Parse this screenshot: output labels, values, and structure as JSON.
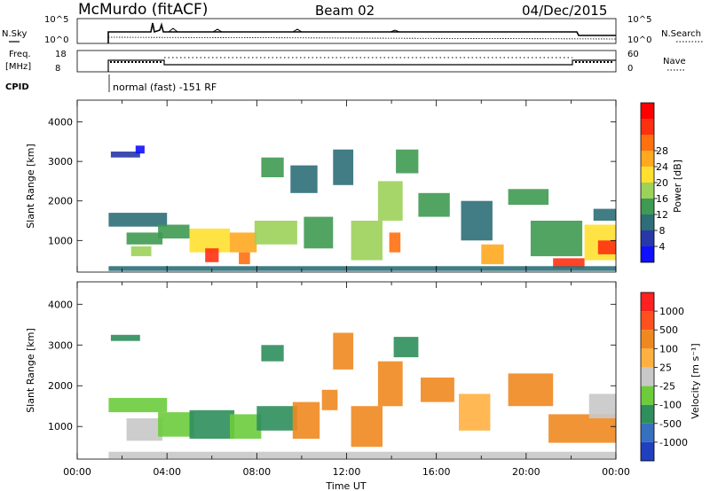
{
  "header": {
    "station": "McMurdo (fitACF)",
    "beam": "Beam 02",
    "date": "04/Dec/2015"
  },
  "panels": {
    "nsky": {
      "label": "N.Sky",
      "ticks": [
        "10^5",
        "10^0"
      ],
      "right_label": "N.Search",
      "right_ticks": [
        "10^5",
        "10^0"
      ]
    },
    "freq": {
      "label_top": "Freq.",
      "label_bottom": "[MHz]",
      "ticks": [
        "18",
        "8"
      ],
      "right_label": "Nave",
      "right_ticks": [
        "60",
        "0"
      ]
    },
    "cpid": {
      "label": "CPID",
      "text": "normal (fast) -151 RF"
    }
  },
  "chart_data": [
    {
      "type": "heatmap",
      "name": "power",
      "ylabel": "Slant Range [km]",
      "xlabel": "",
      "yticks": [
        "1000",
        "2000",
        "3000",
        "4000"
      ],
      "ylim": [
        200,
        4550
      ],
      "xlim": [
        0,
        24
      ],
      "colorbar": {
        "label": "Power [dB]",
        "ticks": [
          "4",
          "8",
          "12",
          "16",
          "20",
          "24",
          "28"
        ],
        "colors": [
          "#1010ff",
          "#2838a8",
          "#2e6e78",
          "#3f9a52",
          "#9cd25a",
          "#ffe030",
          "#ffa820",
          "#ff7010",
          "#ff3010",
          "#ff0000"
        ]
      },
      "cells": [
        [
          1.5,
          2.8,
          3100,
          3250,
          1
        ],
        [
          2.6,
          3.0,
          3200,
          3400,
          0
        ],
        [
          1.4,
          4.0,
          1350,
          1700,
          2
        ],
        [
          2.2,
          3.8,
          900,
          1200,
          3
        ],
        [
          2.4,
          3.3,
          600,
          850,
          4
        ],
        [
          3.6,
          5.0,
          1050,
          1400,
          3
        ],
        [
          5.0,
          6.8,
          700,
          1300,
          5
        ],
        [
          5.7,
          6.3,
          450,
          800,
          8
        ],
        [
          6.8,
          8.0,
          700,
          1200,
          6
        ],
        [
          7.2,
          7.7,
          400,
          700,
          7
        ],
        [
          7.9,
          9.8,
          900,
          1500,
          4
        ],
        [
          8.2,
          9.2,
          2600,
          3100,
          3
        ],
        [
          9.5,
          10.7,
          2200,
          2900,
          2
        ],
        [
          10.1,
          11.4,
          800,
          1600,
          3
        ],
        [
          11.4,
          12.3,
          2400,
          3300,
          2
        ],
        [
          12.2,
          13.6,
          500,
          1500,
          4
        ],
        [
          13.4,
          14.5,
          1500,
          2500,
          4
        ],
        [
          13.9,
          14.4,
          700,
          1200,
          7
        ],
        [
          14.2,
          15.2,
          2700,
          3300,
          3
        ],
        [
          15.2,
          16.6,
          1600,
          2200,
          3
        ],
        [
          17.1,
          18.5,
          1000,
          2000,
          2
        ],
        [
          18.0,
          19.0,
          400,
          900,
          6
        ],
        [
          19.2,
          21.0,
          1900,
          2300,
          3
        ],
        [
          20.2,
          22.5,
          600,
          1500,
          3
        ],
        [
          21.2,
          22.6,
          300,
          550,
          8
        ],
        [
          22.6,
          24.0,
          500,
          1400,
          5
        ],
        [
          23.2,
          24.0,
          650,
          1000,
          8
        ],
        [
          23.0,
          24.0,
          1500,
          1800,
          2
        ],
        [
          1.4,
          24.0,
          230,
          350,
          2
        ]
      ]
    },
    {
      "type": "heatmap",
      "name": "velocity",
      "ylabel": "Slant Range [km]",
      "xlabel": "Time UT",
      "yticks": [
        "1000",
        "2000",
        "3000",
        "4000"
      ],
      "xticks": [
        "00:00",
        "04:00",
        "08:00",
        "12:00",
        "16:00",
        "20:00",
        "00:00"
      ],
      "ylim": [
        200,
        4550
      ],
      "xlim": [
        0,
        24
      ],
      "colorbar": {
        "label": "Velocity [m s⁻¹]",
        "ticks": [
          "1000",
          "500",
          "100",
          "25",
          "-25",
          "-100",
          "-500",
          "-1000"
        ],
        "colors": [
          "#2040c0",
          "#3870c0",
          "#2e8e5c",
          "#6ccc3c",
          "#c8c8c8",
          "#ffb040",
          "#f08820",
          "#ff5020",
          "#ff2020"
        ]
      },
      "cells": [
        [
          1.5,
          2.8,
          3100,
          3250,
          2
        ],
        [
          1.4,
          4.0,
          1350,
          1700,
          3
        ],
        [
          2.2,
          3.8,
          650,
          1200,
          4
        ],
        [
          3.6,
          5.2,
          750,
          1350,
          3
        ],
        [
          5.0,
          7.0,
          700,
          1400,
          2
        ],
        [
          6.8,
          8.2,
          700,
          1300,
          3
        ],
        [
          8.0,
          9.8,
          900,
          1500,
          2
        ],
        [
          8.2,
          9.2,
          2600,
          3000,
          2
        ],
        [
          9.6,
          10.8,
          700,
          1600,
          6
        ],
        [
          10.9,
          11.6,
          1400,
          1900,
          6
        ],
        [
          11.4,
          12.3,
          2400,
          3300,
          6
        ],
        [
          12.2,
          13.6,
          500,
          1500,
          6
        ],
        [
          13.4,
          14.5,
          1500,
          2600,
          6
        ],
        [
          14.1,
          15.2,
          2700,
          3200,
          2
        ],
        [
          15.3,
          16.8,
          1600,
          2200,
          6
        ],
        [
          17.0,
          18.4,
          900,
          1800,
          5
        ],
        [
          19.2,
          21.2,
          1500,
          2300,
          6
        ],
        [
          21.0,
          24.0,
          600,
          1300,
          6
        ],
        [
          22.8,
          24.0,
          1200,
          1800,
          4
        ],
        [
          1.4,
          24.0,
          220,
          380,
          4
        ]
      ]
    }
  ]
}
